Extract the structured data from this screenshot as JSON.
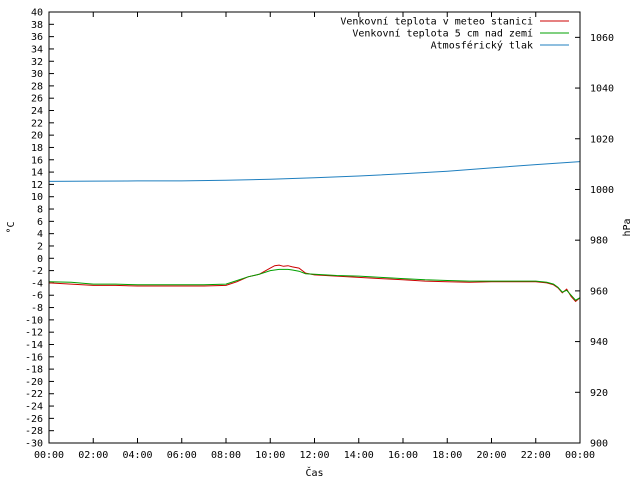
{
  "chart_data": {
    "type": "line",
    "xlabel": "Čas",
    "ylabel": "°C",
    "y2label": "hPa",
    "x_ticks": [
      "00:00",
      "02:00",
      "04:00",
      "06:00",
      "08:00",
      "10:00",
      "12:00",
      "14:00",
      "16:00",
      "18:00",
      "20:00",
      "22:00",
      "00:00"
    ],
    "xlim": [
      0,
      24
    ],
    "ylim": [
      -30,
      40
    ],
    "y2lim": [
      900,
      1070
    ],
    "y_ticks": [
      -30,
      -28,
      -26,
      -24,
      -22,
      -20,
      -18,
      -16,
      -14,
      -12,
      -10,
      -8,
      -6,
      -4,
      -2,
      0,
      2,
      4,
      6,
      8,
      10,
      12,
      14,
      16,
      18,
      20,
      22,
      24,
      26,
      28,
      30,
      32,
      34,
      36,
      38,
      40
    ],
    "y2_ticks": [
      900,
      920,
      940,
      960,
      980,
      1000,
      1020,
      1040,
      1060
    ],
    "legend_position": "top-right",
    "series": [
      {
        "name": "Venkovní teplota v meteo stanici",
        "color": "#cc0000",
        "axis": "left",
        "x": [
          0,
          1,
          2,
          3,
          4,
          5,
          6,
          7,
          8,
          8.5,
          9,
          9.5,
          10,
          10.2,
          10.4,
          10.6,
          10.8,
          11,
          11.3,
          11.6,
          12,
          13,
          14,
          15,
          16,
          17,
          18,
          19,
          20,
          21,
          22,
          22.5,
          22.8,
          23,
          23.2,
          23.4,
          23.6,
          23.8,
          24
        ],
        "y": [
          -4,
          -4.2,
          -4.4,
          -4.4,
          -4.5,
          -4.5,
          -4.5,
          -4.5,
          -4.4,
          -3.8,
          -3,
          -2.6,
          -1.6,
          -1.2,
          -1.1,
          -1.3,
          -1.2,
          -1.4,
          -1.6,
          -2.4,
          -2.7,
          -2.9,
          -3.1,
          -3.3,
          -3.5,
          -3.7,
          -3.8,
          -3.9,
          -3.8,
          -3.8,
          -3.8,
          -4.0,
          -4.3,
          -4.8,
          -5.6,
          -5.0,
          -6.2,
          -7.0,
          -6.4
        ]
      },
      {
        "name": "Venkovní teplota 5 cm nad zemí",
        "color": "#00a000",
        "axis": "left",
        "x": [
          0,
          1,
          2,
          3,
          4,
          5,
          6,
          7,
          8,
          8.5,
          9,
          9.5,
          10,
          10.2,
          10.4,
          10.6,
          10.8,
          11,
          11.3,
          11.6,
          12,
          13,
          14,
          15,
          16,
          17,
          18,
          19,
          20,
          21,
          22,
          22.5,
          22.8,
          23,
          23.2,
          23.4,
          23.6,
          23.8,
          24
        ],
        "y": [
          -3.8,
          -3.9,
          -4.2,
          -4.2,
          -4.3,
          -4.3,
          -4.3,
          -4.3,
          -4.2,
          -3.6,
          -3,
          -2.6,
          -2.0,
          -1.9,
          -1.8,
          -1.8,
          -1.8,
          -1.9,
          -2.1,
          -2.5,
          -2.6,
          -2.8,
          -2.9,
          -3.1,
          -3.3,
          -3.5,
          -3.6,
          -3.7,
          -3.7,
          -3.7,
          -3.7,
          -3.9,
          -4.2,
          -4.7,
          -5.5,
          -5.2,
          -6.0,
          -6.8,
          -6.4
        ]
      },
      {
        "name": "Atmosférický tlak",
        "color": "#1f7fbf",
        "axis": "right",
        "x": [
          0,
          2,
          4,
          6,
          8,
          10,
          12,
          14,
          16,
          18,
          20,
          22,
          24
        ],
        "y": [
          1003.2,
          1003.3,
          1003.4,
          1003.4,
          1003.6,
          1004.0,
          1004.6,
          1005.3,
          1006.2,
          1007.2,
          1008.5,
          1009.8,
          1011.0
        ]
      }
    ]
  }
}
